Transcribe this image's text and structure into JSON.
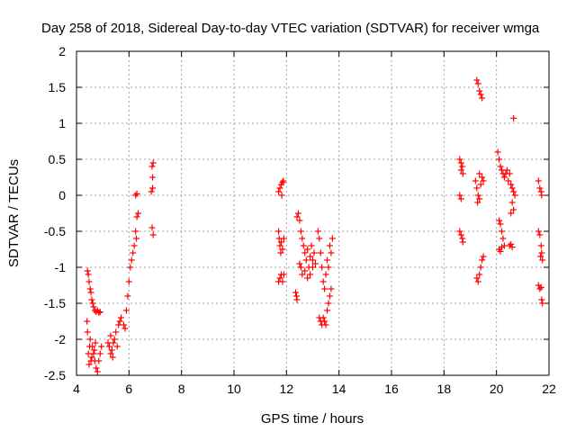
{
  "chart_data": {
    "type": "scatter",
    "title": "Day 258 of 2018, Sidereal Day-to-day VTEC variation (SDTVAR) for receiver wmga",
    "xlabel": "GPS time / hours",
    "ylabel": "SDTVAR / TECUs",
    "xlim": [
      4,
      22
    ],
    "ylim": [
      -2.5,
      2
    ],
    "xticks": [
      4,
      6,
      8,
      10,
      12,
      14,
      16,
      18,
      20,
      22
    ],
    "yticks": [
      -2.5,
      -2,
      -1.5,
      -1,
      -0.5,
      0,
      0.5,
      1,
      1.5,
      2
    ],
    "xtick_labels": [
      "4",
      "6",
      "8",
      "10",
      "12",
      "14",
      "16",
      "18",
      "20",
      "22"
    ],
    "ytick_labels": [
      "-2.5",
      "-2",
      "-1.5",
      "-1",
      "-0.5",
      "0",
      "0.5",
      "1",
      "1.5",
      "2"
    ],
    "grid": true,
    "marker": "+",
    "color": "#ff0000",
    "series": [
      {
        "name": "SDTVAR",
        "points": [
          [
            4.4,
            -1.75
          ],
          [
            4.42,
            -1.9
          ],
          [
            4.45,
            -2.2
          ],
          [
            4.48,
            -2.35
          ],
          [
            4.5,
            -2.1
          ],
          [
            4.52,
            -2.0
          ],
          [
            4.55,
            -2.3
          ],
          [
            4.58,
            -2.25
          ],
          [
            4.42,
            -1.05
          ],
          [
            4.45,
            -1.1
          ],
          [
            4.48,
            -1.2
          ],
          [
            4.52,
            -1.3
          ],
          [
            4.55,
            -1.35
          ],
          [
            4.58,
            -1.45
          ],
          [
            4.62,
            -1.5
          ],
          [
            4.65,
            -1.55
          ],
          [
            4.7,
            -1.6
          ],
          [
            4.75,
            -1.62
          ],
          [
            4.8,
            -1.6
          ],
          [
            4.85,
            -1.63
          ],
          [
            4.9,
            -1.62
          ],
          [
            4.6,
            -2.1
          ],
          [
            4.65,
            -2.2
          ],
          [
            4.7,
            -2.3
          ],
          [
            4.75,
            -2.4
          ],
          [
            4.8,
            -2.45
          ],
          [
            4.85,
            -2.3
          ],
          [
            4.9,
            -2.2
          ],
          [
            4.95,
            -2.1
          ],
          [
            4.72,
            -2.05
          ],
          [
            4.68,
            -2.15
          ],
          [
            5.2,
            -2.05
          ],
          [
            5.25,
            -2.1
          ],
          [
            5.3,
            -2.2
          ],
          [
            5.35,
            -2.15
          ],
          [
            5.4,
            -2.05
          ],
          [
            5.45,
            -2.0
          ],
          [
            5.5,
            -1.9
          ],
          [
            5.55,
            -2.1
          ],
          [
            5.6,
            -1.8
          ],
          [
            5.3,
            -1.95
          ],
          [
            5.38,
            -2.25
          ],
          [
            5.65,
            -1.75
          ],
          [
            5.7,
            -1.7
          ],
          [
            5.8,
            -1.8
          ],
          [
            5.85,
            -1.85
          ],
          [
            5.9,
            -1.6
          ],
          [
            5.95,
            -1.4
          ],
          [
            6.0,
            -1.2
          ],
          [
            6.05,
            -1.0
          ],
          [
            6.1,
            -0.9
          ],
          [
            6.15,
            -0.8
          ],
          [
            6.2,
            -0.7
          ],
          [
            6.25,
            -0.5
          ],
          [
            6.3,
            -0.3
          ],
          [
            6.28,
            -0.6
          ],
          [
            6.35,
            -0.25
          ],
          [
            6.25,
            0.0
          ],
          [
            6.3,
            0.02
          ],
          [
            6.85,
            0.05
          ],
          [
            6.9,
            0.1
          ],
          [
            6.88,
            0.4
          ],
          [
            6.92,
            0.45
          ],
          [
            6.9,
            0.25
          ],
          [
            6.88,
            -0.45
          ],
          [
            6.92,
            -0.55
          ],
          [
            11.7,
            0.05
          ],
          [
            11.75,
            0.1
          ],
          [
            11.8,
            0.15
          ],
          [
            11.85,
            0.18
          ],
          [
            11.88,
            0.2
          ],
          [
            11.82,
            0.0
          ],
          [
            11.7,
            -0.5
          ],
          [
            11.72,
            -0.6
          ],
          [
            11.75,
            -0.7
          ],
          [
            11.78,
            -0.8
          ],
          [
            11.8,
            -0.65
          ],
          [
            11.85,
            -0.75
          ],
          [
            11.9,
            -0.6
          ],
          [
            11.7,
            -1.2
          ],
          [
            11.75,
            -1.15
          ],
          [
            11.8,
            -1.1
          ],
          [
            11.85,
            -1.2
          ],
          [
            11.9,
            -1.1
          ],
          [
            12.35,
            -1.35
          ],
          [
            12.4,
            -1.45
          ],
          [
            12.38,
            -1.4
          ],
          [
            12.4,
            -0.3
          ],
          [
            12.45,
            -0.25
          ],
          [
            12.5,
            -0.35
          ],
          [
            12.55,
            -0.5
          ],
          [
            12.6,
            -0.6
          ],
          [
            12.65,
            -0.7
          ],
          [
            12.7,
            -0.8
          ],
          [
            12.75,
            -0.9
          ],
          [
            12.8,
            -0.75
          ],
          [
            12.85,
            -1.0
          ],
          [
            12.9,
            -0.85
          ],
          [
            12.95,
            -0.7
          ],
          [
            13.0,
            -0.9
          ],
          [
            12.5,
            -0.95
          ],
          [
            12.55,
            -1.0
          ],
          [
            12.6,
            -1.1
          ],
          [
            12.7,
            -1.05
          ],
          [
            12.8,
            -1.15
          ],
          [
            12.9,
            -1.1
          ],
          [
            13.0,
            -1.0
          ],
          [
            13.05,
            -0.8
          ],
          [
            13.1,
            -0.95
          ],
          [
            13.2,
            -0.5
          ],
          [
            13.25,
            -0.6
          ],
          [
            13.3,
            -0.8
          ],
          [
            13.35,
            -1.0
          ],
          [
            13.4,
            -1.2
          ],
          [
            13.45,
            -1.3
          ],
          [
            13.5,
            -1.1
          ],
          [
            13.55,
            -0.9
          ],
          [
            13.6,
            -1.0
          ],
          [
            13.65,
            -0.7
          ],
          [
            13.7,
            -0.8
          ],
          [
            13.75,
            -0.6
          ],
          [
            13.25,
            -1.7
          ],
          [
            13.3,
            -1.75
          ],
          [
            13.35,
            -1.8
          ],
          [
            13.4,
            -1.7
          ],
          [
            13.45,
            -1.75
          ],
          [
            13.5,
            -1.8
          ],
          [
            13.55,
            -1.6
          ],
          [
            13.6,
            -1.5
          ],
          [
            13.65,
            -1.4
          ],
          [
            13.7,
            -1.3
          ],
          [
            18.6,
            0.5
          ],
          [
            18.65,
            0.45
          ],
          [
            18.7,
            0.4
          ],
          [
            18.72,
            0.3
          ],
          [
            18.65,
            0.35
          ],
          [
            18.6,
            0.0
          ],
          [
            18.65,
            -0.05
          ],
          [
            18.6,
            -0.5
          ],
          [
            18.65,
            -0.55
          ],
          [
            18.7,
            -0.6
          ],
          [
            18.72,
            -0.65
          ],
          [
            19.25,
            1.6
          ],
          [
            19.3,
            1.55
          ],
          [
            19.35,
            1.45
          ],
          [
            19.4,
            1.4
          ],
          [
            19.45,
            1.35
          ],
          [
            19.2,
            0.2
          ],
          [
            19.25,
            0.1
          ],
          [
            19.3,
            0.0
          ],
          [
            19.35,
            -0.05
          ],
          [
            19.4,
            0.15
          ],
          [
            19.45,
            0.25
          ],
          [
            19.5,
            0.2
          ],
          [
            19.35,
            0.3
          ],
          [
            19.28,
            -0.1
          ],
          [
            19.25,
            -1.15
          ],
          [
            19.3,
            -1.2
          ],
          [
            19.35,
            -1.1
          ],
          [
            19.4,
            -1.0
          ],
          [
            19.45,
            -0.9
          ],
          [
            19.5,
            -0.85
          ],
          [
            20.05,
            0.6
          ],
          [
            20.1,
            0.5
          ],
          [
            20.15,
            0.4
          ],
          [
            20.2,
            0.35
          ],
          [
            20.25,
            0.3
          ],
          [
            20.3,
            0.25
          ],
          [
            20.35,
            0.3
          ],
          [
            20.4,
            0.35
          ],
          [
            20.45,
            0.2
          ],
          [
            20.5,
            0.3
          ],
          [
            20.55,
            0.15
          ],
          [
            20.6,
            0.1
          ],
          [
            20.65,
            0.05
          ],
          [
            20.7,
            0.0
          ],
          [
            20.6,
            -0.1
          ],
          [
            20.65,
            -0.2
          ],
          [
            20.55,
            -0.25
          ],
          [
            20.1,
            -0.35
          ],
          [
            20.15,
            -0.4
          ],
          [
            20.2,
            -0.5
          ],
          [
            20.25,
            -0.6
          ],
          [
            20.3,
            -0.7
          ],
          [
            20.1,
            -0.75
          ],
          [
            20.15,
            -0.78
          ],
          [
            20.2,
            -0.72
          ],
          [
            20.5,
            -0.7
          ],
          [
            20.55,
            -0.68
          ],
          [
            20.6,
            -0.72
          ],
          [
            20.65,
            1.07
          ],
          [
            21.6,
            0.2
          ],
          [
            21.65,
            0.1
          ],
          [
            21.7,
            0.05
          ],
          [
            21.72,
            0.0
          ],
          [
            21.6,
            -0.5
          ],
          [
            21.65,
            -0.55
          ],
          [
            21.7,
            -0.7
          ],
          [
            21.72,
            -0.8
          ],
          [
            21.75,
            -0.9
          ],
          [
            21.68,
            -0.85
          ],
          [
            21.6,
            -1.25
          ],
          [
            21.65,
            -1.3
          ],
          [
            21.7,
            -1.28
          ],
          [
            21.72,
            -1.45
          ],
          [
            21.75,
            -1.5
          ]
        ]
      }
    ]
  }
}
